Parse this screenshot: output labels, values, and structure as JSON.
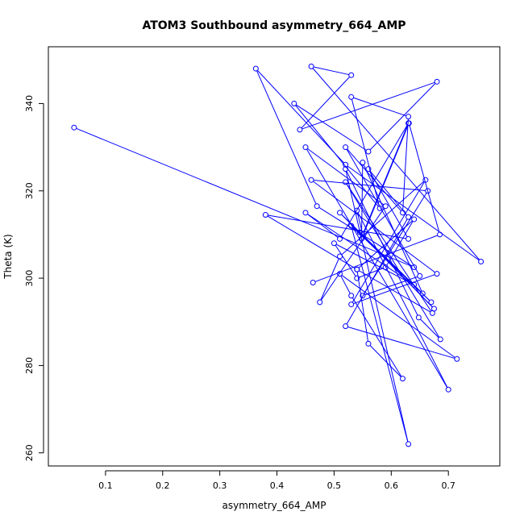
{
  "chart_data": {
    "type": "line",
    "title": "ATOM3 Southbound asymmetry_664_AMP",
    "xlabel": "asymmetry_664_AMP",
    "ylabel": "Theta (K)",
    "xlim": [
      0.0,
      0.79
    ],
    "ylim": [
      257,
      353
    ],
    "xticks": [
      0.1,
      0.2,
      0.3,
      0.4,
      0.5,
      0.6,
      0.7
    ],
    "xtick_labels": [
      "0.1",
      "0.2",
      "0.3",
      "0.4",
      "0.5",
      "0.6",
      "0.7"
    ],
    "yticks": [
      260,
      280,
      300,
      320,
      340
    ],
    "ytick_labels": [
      "260",
      "280",
      "300",
      "320",
      "340"
    ],
    "grid": false,
    "legend": "none",
    "color": "#0000ff",
    "series": [
      {
        "x": [
          0.045,
          0.64,
          0.47,
          0.363,
          0.52,
          0.757,
          0.46,
          0.53,
          0.44,
          0.68,
          0.56,
          0.43,
          0.58,
          0.53,
          0.63,
          0.62,
          0.52,
          0.65,
          0.55,
          0.664,
          0.46,
          0.68,
          0.53,
          0.66,
          0.51,
          0.475,
          0.59,
          0.45,
          0.7,
          0.54,
          0.55,
          0.63,
          0.51,
          0.45,
          0.64,
          0.5,
          0.54,
          0.59,
          0.64,
          0.54,
          0.38,
          0.63,
          0.56,
          0.63,
          0.52,
          0.715,
          0.51,
          0.53,
          0.62,
          0.56,
          0.54,
          0.672,
          0.52,
          0.686,
          0.648,
          0.52,
          0.63,
          0.53,
          0.67,
          0.545,
          0.675,
          0.51,
          0.655,
          0.55,
          0.548,
          0.631,
          0.685,
          0.463
        ],
        "y": [
          334.5,
          302.5,
          316.5,
          348,
          326,
          303.8,
          348.5,
          346.5,
          334,
          345,
          329,
          340,
          316,
          341.5,
          337,
          315,
          330,
          300.5,
          296,
          320,
          322.5,
          301,
          294,
          322.5,
          305,
          294.5,
          316.5,
          330,
          274.5,
          315.5,
          310,
          335.5,
          309,
          315,
          298.5,
          308,
          300,
          302.5,
          313.5,
          302,
          314.5,
          309,
          325,
          314,
          289,
          281.5,
          301,
          296,
          277,
          285,
          302,
          292,
          322,
          286,
          291,
          325,
          262,
          312,
          294.5,
          310.5,
          293,
          315,
          296.5,
          326.5,
          309,
          335.5,
          310,
          299
        ]
      }
    ]
  }
}
